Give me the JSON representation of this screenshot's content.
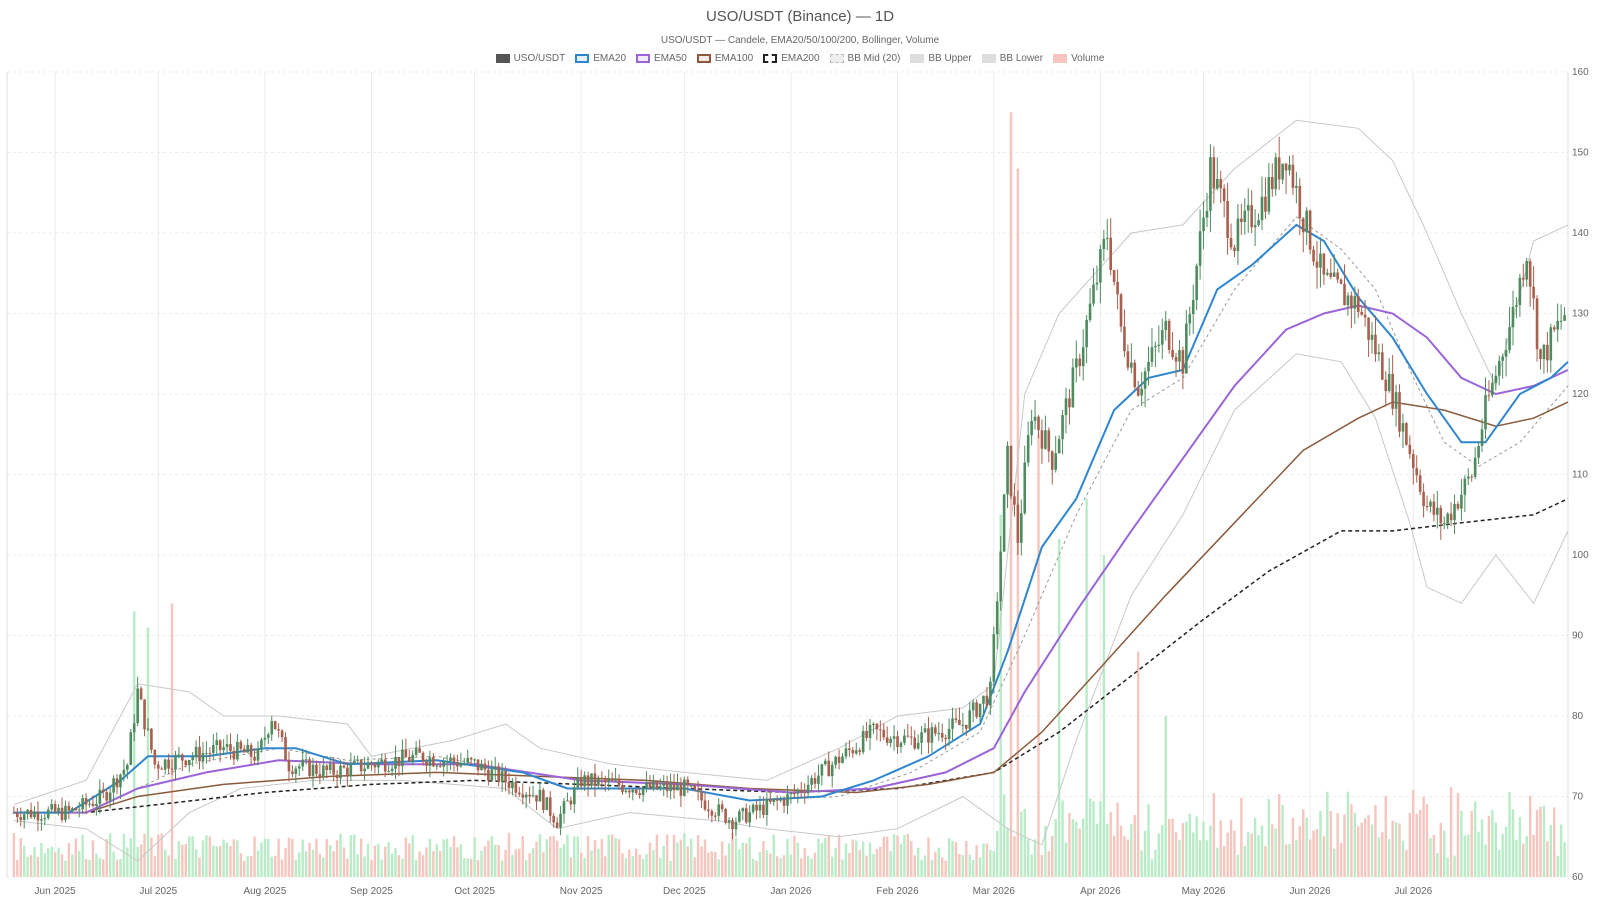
{
  "title": "USO/USDT (Binance) — 1D",
  "subtitle": "USO/USDT — Candele, EMA20/50/100/200, Bollinger, Volume",
  "colors": {
    "up": "#4e8c5f",
    "down": "#a95f4e",
    "vol_up": "#b8ecc6",
    "vol_down": "#f6c5bd",
    "ema20": "#2f86d0",
    "ema50": "#9b64d8",
    "ema100": "#8b5a3c",
    "ema200": "#222222",
    "bb_mid": "#999999",
    "bb_band": "#c8c8c8",
    "grid": "#ececec"
  },
  "legend": [
    {
      "label": "USO/USDT",
      "swatch": "candle"
    },
    {
      "label": "EMA20",
      "swatch": "ema20"
    },
    {
      "label": "EMA50",
      "swatch": "ema50"
    },
    {
      "label": "EMA100",
      "swatch": "ema100"
    },
    {
      "label": "EMA200",
      "swatch": "ema200"
    },
    {
      "label": "BB Mid (20)",
      "swatch": "bb_mid"
    },
    {
      "label": "BB Upper",
      "swatch": "bb_band"
    },
    {
      "label": "BB Lower",
      "swatch": "bb_band"
    },
    {
      "label": "Volume",
      "swatch": "volume"
    }
  ],
  "chart_data": {
    "type": "candlestick",
    "x_start": "2025-05-18",
    "x_end": "2026-08-15",
    "ylim": [
      60,
      160
    ],
    "y_ticks": [
      60,
      70,
      80,
      90,
      100,
      110,
      120,
      130,
      140,
      150,
      160
    ],
    "x_ticks": [
      {
        "label": "Jun 2025",
        "date": "2025-06-01"
      },
      {
        "label": "Jul 2025",
        "date": "2025-07-01"
      },
      {
        "label": "Aug 2025",
        "date": "2025-08-01"
      },
      {
        "label": "Sep 2025",
        "date": "2025-09-01"
      },
      {
        "label": "Oct 2025",
        "date": "2025-10-01"
      },
      {
        "label": "Nov 2025",
        "date": "2025-11-01"
      },
      {
        "label": "Dec 2025",
        "date": "2025-12-01"
      },
      {
        "label": "Jan 2026",
        "date": "2026-01-01"
      },
      {
        "label": "Feb 2026",
        "date": "2026-02-01"
      },
      {
        "label": "Mar 2026",
        "date": "2026-03-01"
      },
      {
        "label": "Apr 2026",
        "date": "2026-04-01"
      },
      {
        "label": "May 2026",
        "date": "2026-05-01"
      },
      {
        "label": "Jun 2026",
        "date": "2026-06-01"
      },
      {
        "label": "Jul 2026",
        "date": "2026-07-01"
      }
    ],
    "grid": true,
    "y_axis_side": "right",
    "close_path": [
      [
        "2025-05-20",
        68
      ],
      [
        "2025-06-05",
        68
      ],
      [
        "2025-06-15",
        70
      ],
      [
        "2025-06-22",
        74
      ],
      [
        "2025-06-25",
        83
      ],
      [
        "2025-06-30",
        74
      ],
      [
        "2025-07-10",
        75
      ],
      [
        "2025-07-20",
        76
      ],
      [
        "2025-07-30",
        75
      ],
      [
        "2025-08-03",
        80
      ],
      [
        "2025-08-08",
        74
      ],
      [
        "2025-08-20",
        73
      ],
      [
        "2025-09-01",
        74
      ],
      [
        "2025-09-15",
        75
      ],
      [
        "2025-10-01",
        74
      ],
      [
        "2025-10-10",
        72
      ],
      [
        "2025-10-20",
        70
      ],
      [
        "2025-10-25",
        67
      ],
      [
        "2025-11-01",
        72
      ],
      [
        "2025-11-20",
        71
      ],
      [
        "2025-12-01",
        71
      ],
      [
        "2025-12-15",
        67
      ],
      [
        "2026-01-01",
        70
      ],
      [
        "2026-01-10",
        73
      ],
      [
        "2026-01-25",
        78
      ],
      [
        "2026-02-05",
        77
      ],
      [
        "2026-02-20",
        79
      ],
      [
        "2026-02-28",
        83
      ],
      [
        "2026-03-02",
        95
      ],
      [
        "2026-03-05",
        112
      ],
      [
        "2026-03-08",
        102
      ],
      [
        "2026-03-12",
        118
      ],
      [
        "2026-03-18",
        112
      ],
      [
        "2026-03-25",
        123
      ],
      [
        "2026-04-03",
        140
      ],
      [
        "2026-04-07",
        128
      ],
      [
        "2026-04-12",
        121
      ],
      [
        "2026-04-20",
        128
      ],
      [
        "2026-04-25",
        124
      ],
      [
        "2026-05-03",
        148
      ],
      [
        "2026-05-10",
        139
      ],
      [
        "2026-05-18",
        144
      ],
      [
        "2026-05-25",
        150
      ],
      [
        "2026-05-30",
        142
      ],
      [
        "2026-06-05",
        134
      ],
      [
        "2026-06-15",
        131
      ],
      [
        "2026-06-25",
        120
      ],
      [
        "2026-07-05",
        106
      ],
      [
        "2026-07-10",
        104
      ],
      [
        "2026-07-18",
        110
      ],
      [
        "2026-07-22",
        118
      ],
      [
        "2026-07-30",
        130
      ],
      [
        "2026-08-03",
        138
      ],
      [
        "2026-08-07",
        124
      ],
      [
        "2026-08-14",
        130
      ]
    ],
    "ema20_path": [
      [
        "2025-05-20",
        68
      ],
      [
        "2025-06-05",
        68
      ],
      [
        "2025-06-20",
        72
      ],
      [
        "2025-06-28",
        75
      ],
      [
        "2025-07-15",
        75
      ],
      [
        "2025-08-01",
        76
      ],
      [
        "2025-08-10",
        76
      ],
      [
        "2025-08-25",
        74
      ],
      [
        "2025-09-20",
        74.5
      ],
      [
        "2025-10-15",
        73
      ],
      [
        "2025-10-28",
        71
      ],
      [
        "2025-12-01",
        71
      ],
      [
        "2025-12-20",
        69.5
      ],
      [
        "2026-01-10",
        70
      ],
      [
        "2026-01-25",
        72
      ],
      [
        "2026-02-10",
        75
      ],
      [
        "2026-02-25",
        79
      ],
      [
        "2026-03-05",
        88
      ],
      [
        "2026-03-15",
        101
      ],
      [
        "2026-03-25",
        107
      ],
      [
        "2026-04-05",
        118
      ],
      [
        "2026-04-15",
        122
      ],
      [
        "2026-04-25",
        123
      ],
      [
        "2026-05-05",
        133
      ],
      [
        "2026-05-15",
        136
      ],
      [
        "2026-05-28",
        141
      ],
      [
        "2026-06-05",
        139
      ],
      [
        "2026-06-15",
        132
      ],
      [
        "2026-06-25",
        127
      ],
      [
        "2026-07-05",
        120
      ],
      [
        "2026-07-15",
        114
      ],
      [
        "2026-07-22",
        114
      ],
      [
        "2026-08-01",
        120
      ],
      [
        "2026-08-10",
        122
      ],
      [
        "2026-08-15",
        124
      ]
    ],
    "ema50_path": [
      [
        "2025-05-20",
        68
      ],
      [
        "2025-06-10",
        68
      ],
      [
        "2025-06-25",
        71
      ],
      [
        "2025-07-15",
        73
      ],
      [
        "2025-08-05",
        74.5
      ],
      [
        "2025-09-01",
        74
      ],
      [
        "2025-10-01",
        74
      ],
      [
        "2025-11-01",
        72
      ],
      [
        "2025-12-01",
        71.5
      ],
      [
        "2026-01-01",
        70.5
      ],
      [
        "2026-01-25",
        71
      ],
      [
        "2026-02-15",
        73
      ],
      [
        "2026-03-01",
        76
      ],
      [
        "2026-03-10",
        83
      ],
      [
        "2026-03-25",
        93
      ],
      [
        "2026-04-10",
        103
      ],
      [
        "2026-04-25",
        112
      ],
      [
        "2026-05-10",
        121
      ],
      [
        "2026-05-25",
        128
      ],
      [
        "2026-06-05",
        130
      ],
      [
        "2026-06-15",
        131
      ],
      [
        "2026-06-25",
        130
      ],
      [
        "2026-07-05",
        127
      ],
      [
        "2026-07-15",
        122
      ],
      [
        "2026-07-25",
        120
      ],
      [
        "2026-08-05",
        121
      ],
      [
        "2026-08-15",
        123
      ]
    ],
    "ema100_path": [
      [
        "2025-05-20",
        68
      ],
      [
        "2025-06-10",
        68
      ],
      [
        "2025-06-25",
        70
      ],
      [
        "2025-07-20",
        71.5
      ],
      [
        "2025-08-20",
        72.5
      ],
      [
        "2025-09-20",
        73
      ],
      [
        "2025-10-20",
        72.5
      ],
      [
        "2025-11-20",
        72
      ],
      [
        "2025-12-20",
        71
      ],
      [
        "2026-01-20",
        70.5
      ],
      [
        "2026-02-10",
        71.5
      ],
      [
        "2026-03-01",
        73
      ],
      [
        "2026-03-15",
        78
      ],
      [
        "2026-04-01",
        86
      ],
      [
        "2026-04-20",
        95
      ],
      [
        "2026-05-10",
        104
      ],
      [
        "2026-05-30",
        113
      ],
      [
        "2026-06-15",
        117
      ],
      [
        "2026-06-25",
        119
      ],
      [
        "2026-07-10",
        118
      ],
      [
        "2026-07-25",
        116
      ],
      [
        "2026-08-05",
        117
      ],
      [
        "2026-08-15",
        119
      ]
    ],
    "ema200_path": [
      [
        "2025-05-20",
        68
      ],
      [
        "2025-06-10",
        68
      ],
      [
        "2025-07-01",
        69
      ],
      [
        "2025-08-01",
        70.5
      ],
      [
        "2025-09-01",
        71.5
      ],
      [
        "2025-10-01",
        72
      ],
      [
        "2025-11-01",
        71.5
      ],
      [
        "2025-12-01",
        71
      ],
      [
        "2026-01-01",
        70.5
      ],
      [
        "2026-02-01",
        71
      ],
      [
        "2026-03-01",
        73
      ],
      [
        "2026-03-20",
        78
      ],
      [
        "2026-04-10",
        85
      ],
      [
        "2026-05-01",
        92
      ],
      [
        "2026-05-20",
        98
      ],
      [
        "2026-06-10",
        103
      ],
      [
        "2026-06-25",
        103
      ],
      [
        "2026-07-15",
        104
      ],
      [
        "2026-08-05",
        105
      ],
      [
        "2026-08-15",
        107
      ]
    ],
    "bb_mid_path": [
      [
        "2025-05-20",
        68
      ],
      [
        "2025-06-10",
        68
      ],
      [
        "2025-06-25",
        71
      ],
      [
        "2025-07-10",
        74
      ],
      [
        "2025-08-05",
        76
      ],
      [
        "2025-08-25",
        74.5
      ],
      [
        "2025-09-20",
        75
      ],
      [
        "2025-10-15",
        73
      ],
      [
        "2025-10-28",
        71
      ],
      [
        "2025-12-01",
        71
      ],
      [
        "2025-12-20",
        69.5
      ],
      [
        "2026-01-15",
        70
      ],
      [
        "2026-02-05",
        73
      ],
      [
        "2026-02-25",
        78
      ],
      [
        "2026-03-10",
        90
      ],
      [
        "2026-03-25",
        105
      ],
      [
        "2026-04-10",
        118
      ],
      [
        "2026-04-25",
        122
      ],
      [
        "2026-05-10",
        133
      ],
      [
        "2026-05-28",
        142
      ],
      [
        "2026-06-10",
        138
      ],
      [
        "2026-06-20",
        133
      ],
      [
        "2026-06-30",
        123
      ],
      [
        "2026-07-10",
        114
      ],
      [
        "2026-07-20",
        111
      ],
      [
        "2026-08-01",
        114
      ],
      [
        "2026-08-15",
        121
      ]
    ],
    "bb_upper_path": [
      [
        "2025-05-20",
        69
      ],
      [
        "2025-06-10",
        72
      ],
      [
        "2025-06-25",
        84
      ],
      [
        "2025-07-10",
        83
      ],
      [
        "2025-07-20",
        80
      ],
      [
        "2025-08-05",
        80
      ],
      [
        "2025-08-25",
        79
      ],
      [
        "2025-09-01",
        75
      ],
      [
        "2025-09-25",
        77
      ],
      [
        "2025-10-10",
        79
      ],
      [
        "2025-10-20",
        76
      ],
      [
        "2025-11-10",
        74
      ],
      [
        "2025-12-01",
        73
      ],
      [
        "2025-12-25",
        72
      ],
      [
        "2026-01-15",
        76
      ],
      [
        "2026-02-01",
        80
      ],
      [
        "2026-02-20",
        81
      ],
      [
        "2026-03-01",
        84
      ],
      [
        "2026-03-10",
        120
      ],
      [
        "2026-03-20",
        130
      ],
      [
        "2026-04-10",
        140
      ],
      [
        "2026-04-25",
        141
      ],
      [
        "2026-05-10",
        148
      ],
      [
        "2026-05-28",
        154
      ],
      [
        "2026-06-15",
        153
      ],
      [
        "2026-06-25",
        149
      ],
      [
        "2026-07-05",
        140
      ],
      [
        "2026-07-15",
        130
      ],
      [
        "2026-07-25",
        121
      ],
      [
        "2026-08-05",
        139
      ],
      [
        "2026-08-15",
        141
      ]
    ],
    "bb_lower_path": [
      [
        "2025-05-20",
        67
      ],
      [
        "2025-06-10",
        66
      ],
      [
        "2025-06-25",
        62
      ],
      [
        "2025-07-10",
        68
      ],
      [
        "2025-07-25",
        71
      ],
      [
        "2025-08-15",
        72
      ],
      [
        "2025-09-10",
        72
      ],
      [
        "2025-10-10",
        71
      ],
      [
        "2025-10-25",
        66
      ],
      [
        "2025-11-15",
        68
      ],
      [
        "2025-12-10",
        67
      ],
      [
        "2025-12-25",
        66
      ],
      [
        "2026-01-15",
        65
      ],
      [
        "2026-02-01",
        66
      ],
      [
        "2026-02-20",
        70
      ],
      [
        "2026-03-05",
        66
      ],
      [
        "2026-03-15",
        64
      ],
      [
        "2026-03-25",
        77
      ],
      [
        "2026-04-10",
        95
      ],
      [
        "2026-04-25",
        105
      ],
      [
        "2026-05-10",
        118
      ],
      [
        "2026-05-28",
        125
      ],
      [
        "2026-06-10",
        124
      ],
      [
        "2026-06-20",
        117
      ],
      [
        "2026-06-30",
        104
      ],
      [
        "2026-07-05",
        96
      ],
      [
        "2026-07-15",
        94
      ],
      [
        "2026-07-25",
        100
      ],
      [
        "2026-08-05",
        94
      ],
      [
        "2026-08-15",
        103
      ]
    ],
    "volume_spikes": [
      [
        "2025-06-24",
        0.33
      ],
      [
        "2025-06-28",
        0.31
      ],
      [
        "2025-07-05",
        0.34
      ],
      [
        "2026-03-03",
        0.45
      ],
      [
        "2026-03-06",
        0.95
      ],
      [
        "2026-03-08",
        0.88
      ],
      [
        "2026-03-14",
        0.55
      ],
      [
        "2026-03-20",
        0.42
      ],
      [
        "2026-03-28",
        0.47
      ],
      [
        "2026-04-02",
        0.4
      ],
      [
        "2026-04-12",
        0.28
      ],
      [
        "2026-04-20",
        0.2
      ]
    ]
  }
}
